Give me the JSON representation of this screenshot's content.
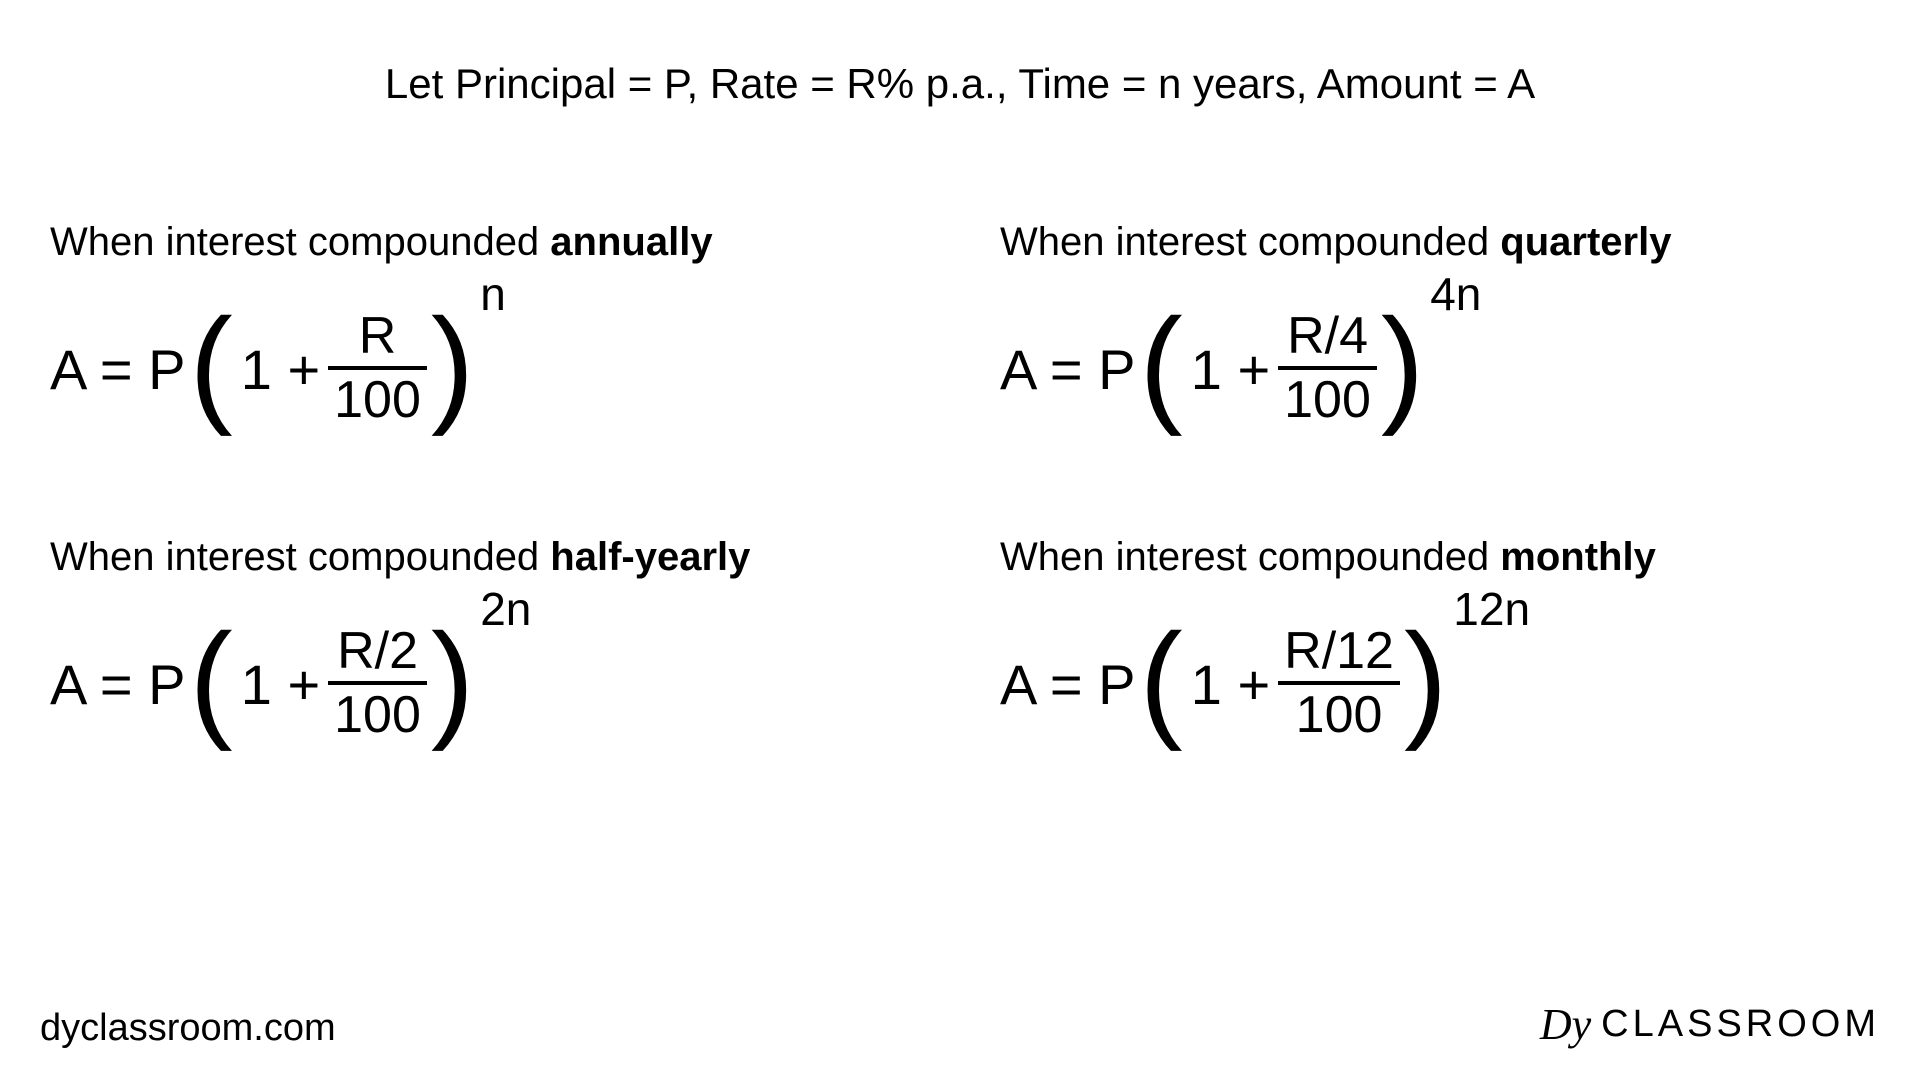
{
  "colors": {
    "background": "#ffffff",
    "text": "#000000",
    "rule": "#000000"
  },
  "typography": {
    "body_fontsize_pt": 30,
    "formula_fontsize_pt": 42,
    "paren_fontsize_pt": 98
  },
  "header": "Let Principal = P, Rate = R% p.a., Time = n years, Amount = A",
  "label_prefix": "When interest compounded ",
  "formulas": {
    "annually": {
      "bold": "annually",
      "lead": "A = P",
      "one_plus": "1 +",
      "numerator": "R",
      "denominator": "100",
      "exponent": "n"
    },
    "quarterly": {
      "bold": "quarterly",
      "lead": "A = P",
      "one_plus": "1 +",
      "numerator": "R/4",
      "denominator": "100",
      "exponent": "4n"
    },
    "half_yearly": {
      "bold": "half-yearly",
      "lead": "A = P",
      "one_plus": "1 +",
      "numerator": "R/2",
      "denominator": "100",
      "exponent": "2n"
    },
    "monthly": {
      "bold": "monthly",
      "lead": "A = P",
      "one_plus": "1 +",
      "numerator": "R/12",
      "denominator": "100",
      "exponent": "12n"
    }
  },
  "footer": {
    "left": "dyclassroom.com",
    "right_prefix": "Dy",
    "right_word": "CLASSROOM"
  },
  "parens": {
    "open": "(",
    "close": ")"
  }
}
